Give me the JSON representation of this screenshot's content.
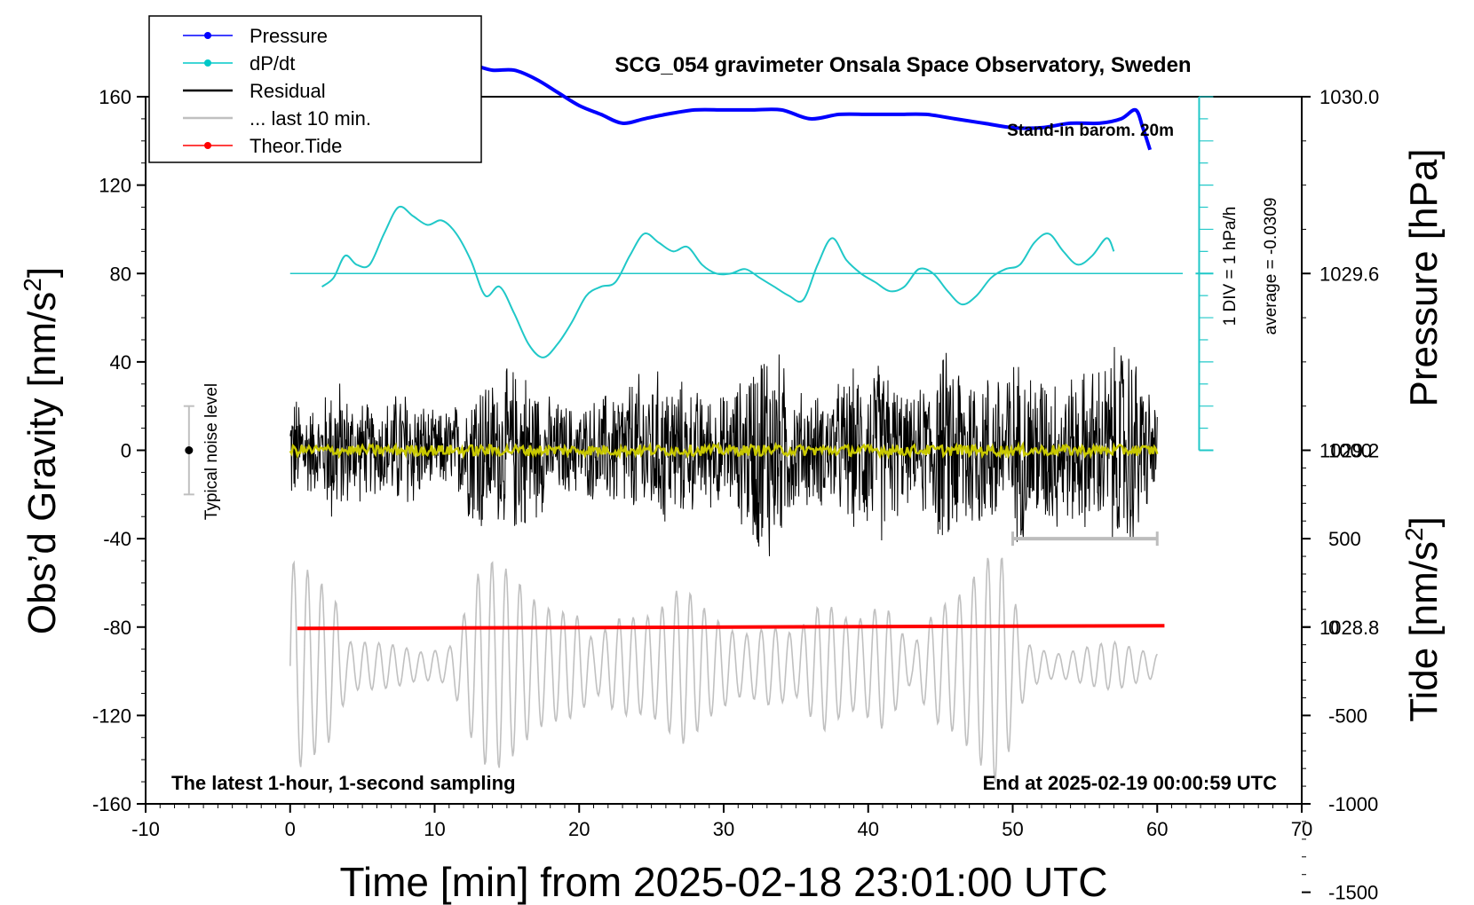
{
  "chart_data": {
    "type": "line",
    "title": "SCG_054 gravimeter Onsala Space Observatory, Sweden",
    "xlabel": "Time [min] from 2025-02-18 23:01:00 UTC",
    "ylabel_main": "Obs’d Gravity [nm/s",
    "ylabel_main_sup": "2",
    "ylabel_main_end": "]",
    "ylabel_pressure": "Pressure [hPa]",
    "ylabel_tide": "Tide [nm/s",
    "ylabel_tide_sup": "2",
    "ylabel_tide_end": "]",
    "xlim": [
      -10,
      70
    ],
    "xticks": [
      "-10",
      "0",
      "10",
      "20",
      "30",
      "40",
      "50",
      "60",
      "70"
    ],
    "ylim": [
      -160,
      160
    ],
    "yticks": [
      "-160",
      "-120",
      "-80",
      "-40",
      "0",
      "40",
      "80",
      "120",
      "160"
    ],
    "pressure_ticks": [
      "1028.8",
      "1029.2",
      "1029.6",
      "1030.0"
    ],
    "pressure_ticks_values": [
      1028.8,
      1029.2,
      1029.6,
      1030.0
    ],
    "tide_ticks": [
      "-1500",
      "-1000",
      "-500",
      "0",
      "500",
      "1000"
    ],
    "tide_ticks_values": [
      -1500,
      -1000,
      -500,
      0,
      500,
      1000
    ],
    "legend": {
      "placement": "top-left",
      "entries": [
        {
          "label": "Pressure",
          "color": "#0000ff"
        },
        {
          "label": "dP/dt",
          "color": "#00c8c8"
        },
        {
          "label": "Residual",
          "color": "#000000"
        },
        {
          "label": "... last 10 min.",
          "color": "#c0c0c0"
        },
        {
          "label": "Theor.Tide",
          "color": "#ff0000"
        }
      ]
    },
    "annotations": {
      "barometer": "Stand-in barom. 20m",
      "div_note": "1 DIV = 1 hPa/h",
      "average_note": "average = -0.0309",
      "noise": "Typical noise level",
      "bottom_left": "The latest 1-hour, 1-second sampling",
      "bottom_right": "End at 2025-02-19 00:00:59 UTC"
    },
    "colors": {
      "pressure": "#0000ff",
      "dpdt": "#20c8c8",
      "residual": "#000000",
      "smooth": "#c8c800",
      "last10": "#c0c0c0",
      "tide": "#ff0000"
    },
    "series": [
      {
        "name": "Pressure",
        "x": [
          0.5,
          1.5,
          2.5,
          3.5,
          5.0,
          6.5,
          8.0,
          9.5,
          11.0,
          12.5,
          14.0,
          15.5,
          17.0,
          18.5,
          20.0,
          21.5,
          23.0,
          24.5,
          26.0,
          28.0,
          30.0,
          32.0,
          34.0,
          36.0,
          38.0,
          40.0,
          42.0,
          44.0,
          46.0,
          48.0,
          50.0,
          52.0,
          54.0,
          56.0,
          57.5,
          58.5,
          59.0,
          59.5
        ],
        "values": [
          1029.99,
          1029.99,
          1029.98,
          1029.98,
          1029.99,
          1029.99,
          1030.01,
          1030.03,
          1030.05,
          1030.07,
          1030.06,
          1030.06,
          1030.04,
          1030.01,
          1029.98,
          1029.96,
          1029.94,
          1029.95,
          1029.96,
          1029.97,
          1029.97,
          1029.97,
          1029.97,
          1029.95,
          1029.96,
          1029.96,
          1029.96,
          1029.96,
          1029.95,
          1029.94,
          1029.93,
          1029.93,
          1029.94,
          1029.94,
          1029.95,
          1029.97,
          1029.93,
          1029.88
        ]
      },
      {
        "name": "dP/dt",
        "x": [
          2.2,
          3.0,
          3.8,
          4.6,
          5.5,
          6.5,
          7.5,
          8.5,
          9.5,
          10.5,
          11.5,
          12.5,
          13.5,
          14.5,
          15.5,
          16.5,
          17.5,
          18.5,
          19.5,
          20.5,
          21.5,
          22.5,
          23.5,
          24.5,
          25.5,
          26.5,
          27.5,
          28.5,
          29.5,
          30.5,
          31.5,
          32.5,
          33.5,
          34.5,
          35.5,
          36.5,
          37.5,
          38.5,
          39.5,
          40.5,
          41.5,
          42.5,
          43.5,
          44.5,
          45.5,
          46.5,
          47.5,
          48.5,
          49.5,
          50.5,
          51.5,
          52.5,
          53.5,
          54.5,
          55.5,
          56.5,
          57.0
        ],
        "values": [
          -0.3,
          -0.1,
          0.4,
          0.2,
          0.2,
          0.9,
          1.5,
          1.3,
          1.1,
          1.2,
          0.9,
          0.3,
          -0.5,
          -0.3,
          -0.9,
          -1.6,
          -1.9,
          -1.6,
          -1.1,
          -0.5,
          -0.3,
          -0.2,
          0.4,
          0.9,
          0.7,
          0.5,
          0.6,
          0.2,
          0.0,
          0.0,
          0.1,
          -0.1,
          -0.3,
          -0.5,
          -0.6,
          0.2,
          0.8,
          0.3,
          0.0,
          -0.2,
          -0.4,
          -0.3,
          0.1,
          0.0,
          -0.4,
          -0.7,
          -0.5,
          -0.1,
          0.1,
          0.2,
          0.7,
          0.9,
          0.5,
          0.2,
          0.4,
          0.8,
          0.5
        ]
      },
      {
        "name": "Residual",
        "x_range": [
          0,
          60
        ],
        "envelope_x": [
          0,
          2,
          3,
          4,
          6,
          8,
          10,
          12,
          13,
          14,
          16,
          18,
          20,
          22,
          24,
          26,
          28,
          30,
          31,
          33,
          35,
          37,
          39,
          41,
          43,
          45,
          46,
          48,
          50,
          52,
          54,
          56,
          58,
          60
        ],
        "envelope_amplitude": [
          30,
          20,
          42,
          28,
          22,
          34,
          18,
          26,
          48,
          36,
          44,
          26,
          22,
          30,
          38,
          40,
          30,
          28,
          34,
          62,
          30,
          28,
          40,
          46,
          24,
          48,
          52,
          40,
          46,
          42,
          38,
          44,
          58,
          20
        ]
      },
      {
        "name": "... last 10 min.",
        "x_range": [
          0,
          60
        ],
        "envelope_x": [
          0,
          3,
          4,
          6,
          9,
          11,
          13,
          14,
          16,
          18,
          20,
          21,
          23,
          25,
          27,
          29,
          31,
          33,
          35,
          37,
          39,
          41,
          43,
          45,
          47,
          49,
          51,
          53,
          55,
          57,
          60
        ],
        "envelope_amplitude": [
          520,
          480,
          160,
          120,
          80,
          120,
          480,
          520,
          460,
          380,
          260,
          120,
          280,
          340,
          420,
          260,
          200,
          240,
          150,
          360,
          300,
          340,
          80,
          380,
          520,
          600,
          120,
          80,
          100,
          120,
          80
        ],
        "center_tide": -220
      },
      {
        "name": "Theor.Tide",
        "x": [
          0.5,
          60.5
        ],
        "values": [
          -8,
          8
        ]
      }
    ],
    "residual_smooth_amplitude": 2.5,
    "noise_bar": {
      "x": -7,
      "center": 0,
      "half_range": 20
    },
    "last10_bar": {
      "x_start": 50,
      "x_end": 60,
      "y_tide": 500
    },
    "dpdt_baseline_y": 80
  }
}
